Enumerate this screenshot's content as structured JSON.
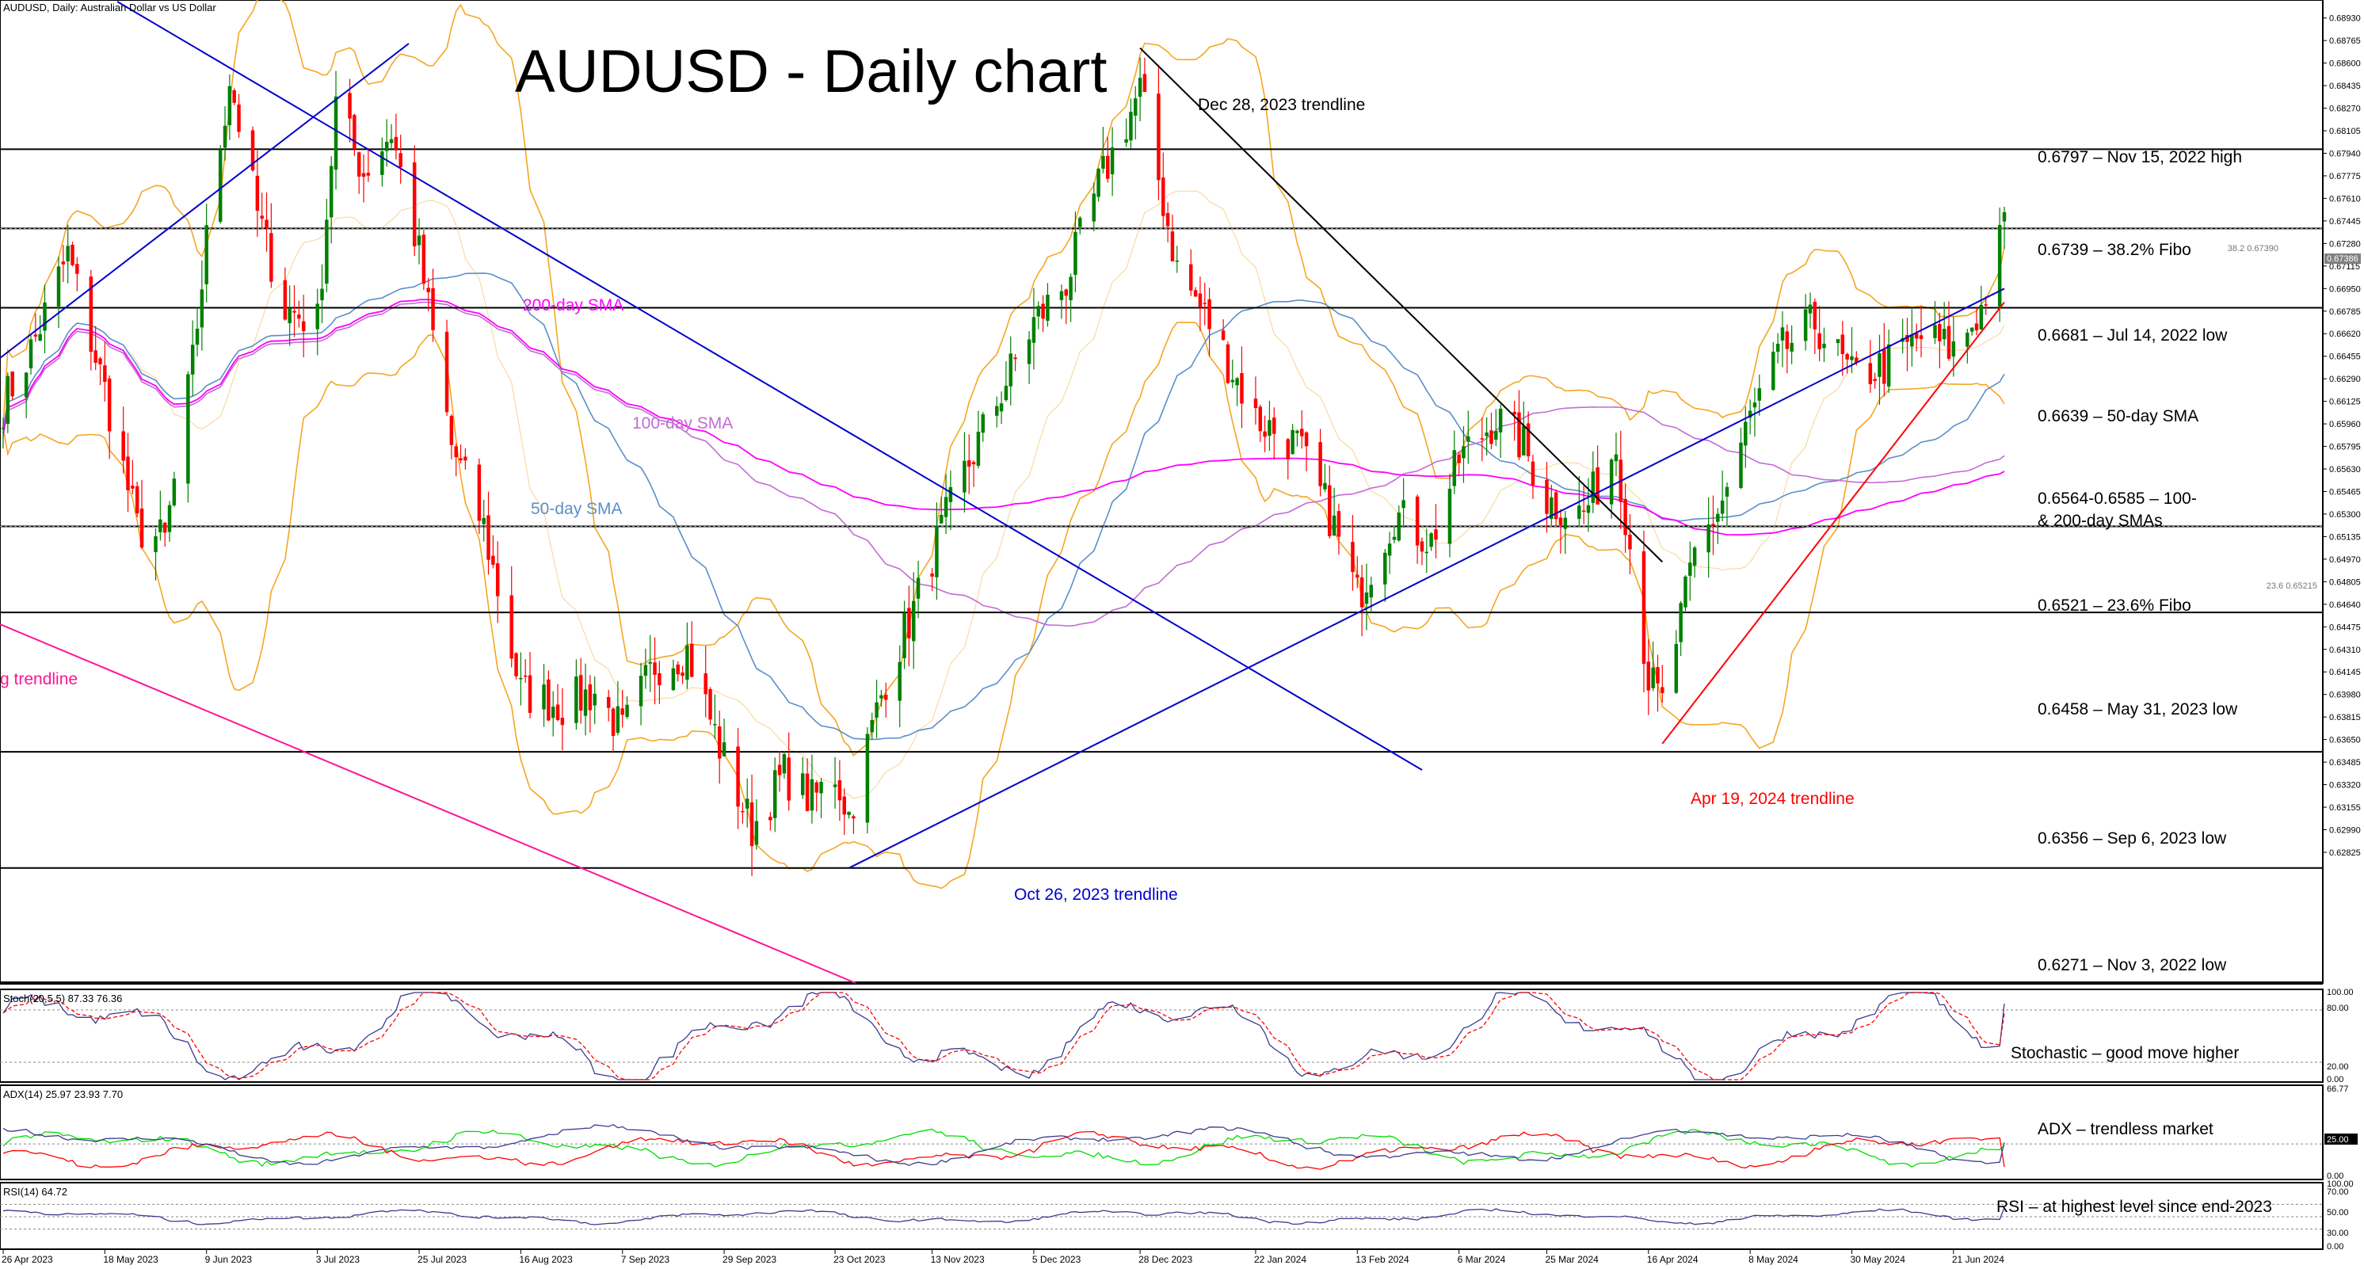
{
  "header": {
    "symbol_line": "AUDUSD, Daily:  Australian Dollar vs US Dollar",
    "title": "AUDUSD - Daily chart"
  },
  "colors": {
    "bull": "#008000",
    "bear": "#ff0000",
    "support_resistance": "#000000",
    "blue_trendline": "#0000cc",
    "pink_trendline": "#ff1493",
    "red_trendline": "#ff0000",
    "sma50": "#5b8fc9",
    "sma100": "#c36bd6",
    "sma200": "#ff00ff",
    "bollinger": "#f5a623",
    "stoch_main": "#3b3b8f",
    "stoch_signal": "#ff0000",
    "adx_main": "#3b3b8f",
    "adx_plus": "#00dd00",
    "adx_minus": "#ff0000",
    "rsi": "#3b3b8f"
  },
  "price_axis": {
    "min": 0.6188,
    "max": 0.6905,
    "ticks": [
      "0.68930",
      "0.68765",
      "0.68600",
      "0.68435",
      "0.68270",
      "0.68105",
      "0.67940",
      "0.67775",
      "0.67610",
      "0.67445",
      "0.67280",
      "0.67115",
      "0.66950",
      "0.66785",
      "0.66620",
      "0.66455",
      "0.66290",
      "0.66125",
      "0.65960",
      "0.65795",
      "0.65630",
      "0.65465",
      "0.65300",
      "0.65135",
      "0.64970",
      "0.64805",
      "0.64640",
      "0.64475",
      "0.64310",
      "0.64145",
      "0.63980",
      "0.63815",
      "0.63650",
      "0.63485",
      "0.63320",
      "0.63155",
      "0.62990",
      "0.62825"
    ],
    "current_price_label": "0.67386",
    "fibo_382_tag": "38.2 0.67390",
    "fibo_236_tag": "23.6 0.65215"
  },
  "time_axis": {
    "labels": [
      "26 Apr 2023",
      "18 May 2023",
      "9 Jun 2023",
      "3 Jul 2023",
      "25 Jul 2023",
      "16 Aug 2023",
      "7 Sep 2023",
      "29 Sep 2023",
      "23 Oct 2023",
      "13 Nov 2023",
      "5 Dec 2023",
      "28 Dec 2023",
      "22 Jan 2024",
      "13 Feb 2024",
      "6 Mar 2024",
      "25 Mar 2024",
      "16 Apr 2024",
      "8 May 2024",
      "30 May 2024",
      "21 Jun 2024"
    ]
  },
  "levels": [
    {
      "price": 0.6797,
      "label": "0.6797 – Nov 15, 2022 high"
    },
    {
      "price": 0.6739,
      "label": "0.6739 – 38.2% Fibo"
    },
    {
      "price": 0.6681,
      "label": "0.6681 – Jul 14, 2022 low"
    },
    {
      "price": 0.6639,
      "label": "0.6639 – 50-day SMA"
    },
    {
      "price": 0.6574,
      "label": "0.6564-0.6585 – 100-",
      "label2": "& 200-day SMAs"
    },
    {
      "price": 0.6521,
      "label": "0.6521 – 23.6% Fibo"
    },
    {
      "price": 0.6458,
      "label": "0.6458 – May 31, 2023 low"
    },
    {
      "price": 0.6356,
      "label": "0.6356 – Sep 6, 2023 low"
    },
    {
      "price": 0.6271,
      "label": "0.6271 – Nov 3, 2022 low"
    }
  ],
  "annotations": {
    "dec28_trendline": "Dec 28, 2023 trendline",
    "oct26_trendline": "Oct 26, 2023 trendline",
    "apr19_trendline": "Apr 19, 2024 trendline",
    "pink_trendline": "g trendline",
    "sma200": "200-day SMA",
    "sma100": "100-day SMA",
    "sma50": "50-day SMA"
  },
  "indicators": {
    "stoch": {
      "header": "Stoch(20,5,5) 87.33 76.36",
      "comment": "Stochastic – good move higher",
      "levels": [
        "100.00",
        "80.00",
        "20.00",
        "0.00"
      ]
    },
    "adx": {
      "header": "ADX(14) 25.97 23.93 7.70",
      "comment": "ADX – trendless market",
      "levels": [
        "66.77",
        "25.00",
        "0.00"
      ]
    },
    "rsi": {
      "header": "RSI(14) 64.72",
      "comment": "RSI – at highest level since end-2023",
      "levels": [
        "100.00",
        "70.00",
        "50.00",
        "30.00",
        "0.00"
      ]
    }
  },
  "chart_data": {
    "type": "candlestick",
    "title": "AUDUSD - Daily chart",
    "symbol": "AUDUSD",
    "timeframe": "Daily",
    "ylim": [
      0.6188,
      0.6905
    ],
    "x_range": [
      "26 Apr 2023",
      "2 Jul 2024"
    ],
    "close_path": {
      "dates": [
        "26 Apr 2023",
        "2 May 2023",
        "10 May 2023",
        "18 May 2023",
        "25 May 2023",
        "31 May 2023",
        "6 Jun 2023",
        "9 Jun 2023",
        "14 Jun 2023",
        "20 Jun 2023",
        "26 Jun 2023",
        "3 Jul 2023",
        "7 Jul 2023",
        "13 Jul 2023",
        "19 Jul 2023",
        "25 Jul 2023",
        "1 Aug 2023",
        "8 Aug 2023",
        "16 Aug 2023",
        "25 Aug 2023",
        "1 Sep 2023",
        "7 Sep 2023",
        "14 Sep 2023",
        "21 Sep 2023",
        "29 Sep 2023",
        "5 Oct 2023",
        "12 Oct 2023",
        "18 Oct 2023",
        "23 Oct 2023",
        "26 Oct 2023",
        "3 Nov 2023",
        "9 Nov 2023",
        "13 Nov 2023",
        "20 Nov 2023",
        "28 Nov 2023",
        "5 Dec 2023",
        "12 Dec 2023",
        "19 Dec 2023",
        "28 Dec 2023",
        "5 Jan 2024",
        "12 Jan 2024",
        "22 Jan 2024",
        "31 Jan 2024",
        "7 Feb 2024",
        "13 Feb 2024",
        "21 Feb 2024",
        "29 Feb 2024",
        "6 Mar 2024",
        "14 Mar 2024",
        "20 Mar 2024",
        "25 Mar 2024",
        "2 Apr 2024",
        "9 Apr 2024",
        "16 Apr 2024",
        "19 Apr 2024",
        "26 Apr 2024",
        "2 May 2024",
        "8 May 2024",
        "15 May 2024",
        "22 May 2024",
        "30 May 2024",
        "7 Jun 2024",
        "14 Jun 2024",
        "21 Jun 2024",
        "27 Jun 2024",
        "2 Jul 2024"
      ],
      "close": [
        0.661,
        0.665,
        0.672,
        0.662,
        0.652,
        0.651,
        0.664,
        0.673,
        0.685,
        0.675,
        0.668,
        0.667,
        0.683,
        0.678,
        0.681,
        0.672,
        0.658,
        0.652,
        0.64,
        0.639,
        0.64,
        0.637,
        0.642,
        0.643,
        0.635,
        0.63,
        0.634,
        0.632,
        0.634,
        0.631,
        0.641,
        0.646,
        0.65,
        0.656,
        0.662,
        0.667,
        0.67,
        0.677,
        0.684,
        0.671,
        0.667,
        0.66,
        0.658,
        0.653,
        0.647,
        0.653,
        0.651,
        0.657,
        0.66,
        0.658,
        0.654,
        0.653,
        0.658,
        0.641,
        0.639,
        0.65,
        0.654,
        0.66,
        0.665,
        0.667,
        0.663,
        0.664,
        0.666,
        0.665,
        0.668,
        0.674
      ]
    },
    "sma": [
      {
        "name": "50-day SMA",
        "last": 0.6639
      },
      {
        "name": "100-day SMA",
        "last": 0.6585
      },
      {
        "name": "200-day SMA",
        "last": 0.6564
      }
    ],
    "fibonacci": [
      {
        "level": "38.2",
        "price": 0.6739
      },
      {
        "level": "23.6",
        "price": 0.6521
      }
    ],
    "horizontal_levels": [
      0.6797,
      0.6739,
      0.6681,
      0.6521,
      0.6458,
      0.6356,
      0.6271
    ],
    "trendlines": [
      {
        "name": "Dec 28, 2023 trendline",
        "from": [
          "28 Dec 2023",
          0.6871
        ],
        "to": [
          "19 Apr 2024",
          0.6495
        ]
      },
      {
        "name": "Oct 26, 2023 trendline",
        "from": [
          "26 Oct 2023",
          0.6271
        ],
        "to": [
          "2 Jul 2024",
          0.6695
        ]
      },
      {
        "name": "Apr 19, 2024 trendline",
        "from": [
          "19 Apr 2024",
          0.6362
        ],
        "to": [
          "2 Jul 2024",
          0.6685
        ]
      }
    ],
    "indicators_last": {
      "stoch": {
        "main": 87.33,
        "signal": 76.36
      },
      "adx": {
        "adx": 25.97,
        "plus_di": 23.93,
        "minus_di": 7.7
      },
      "rsi": 64.72
    }
  }
}
